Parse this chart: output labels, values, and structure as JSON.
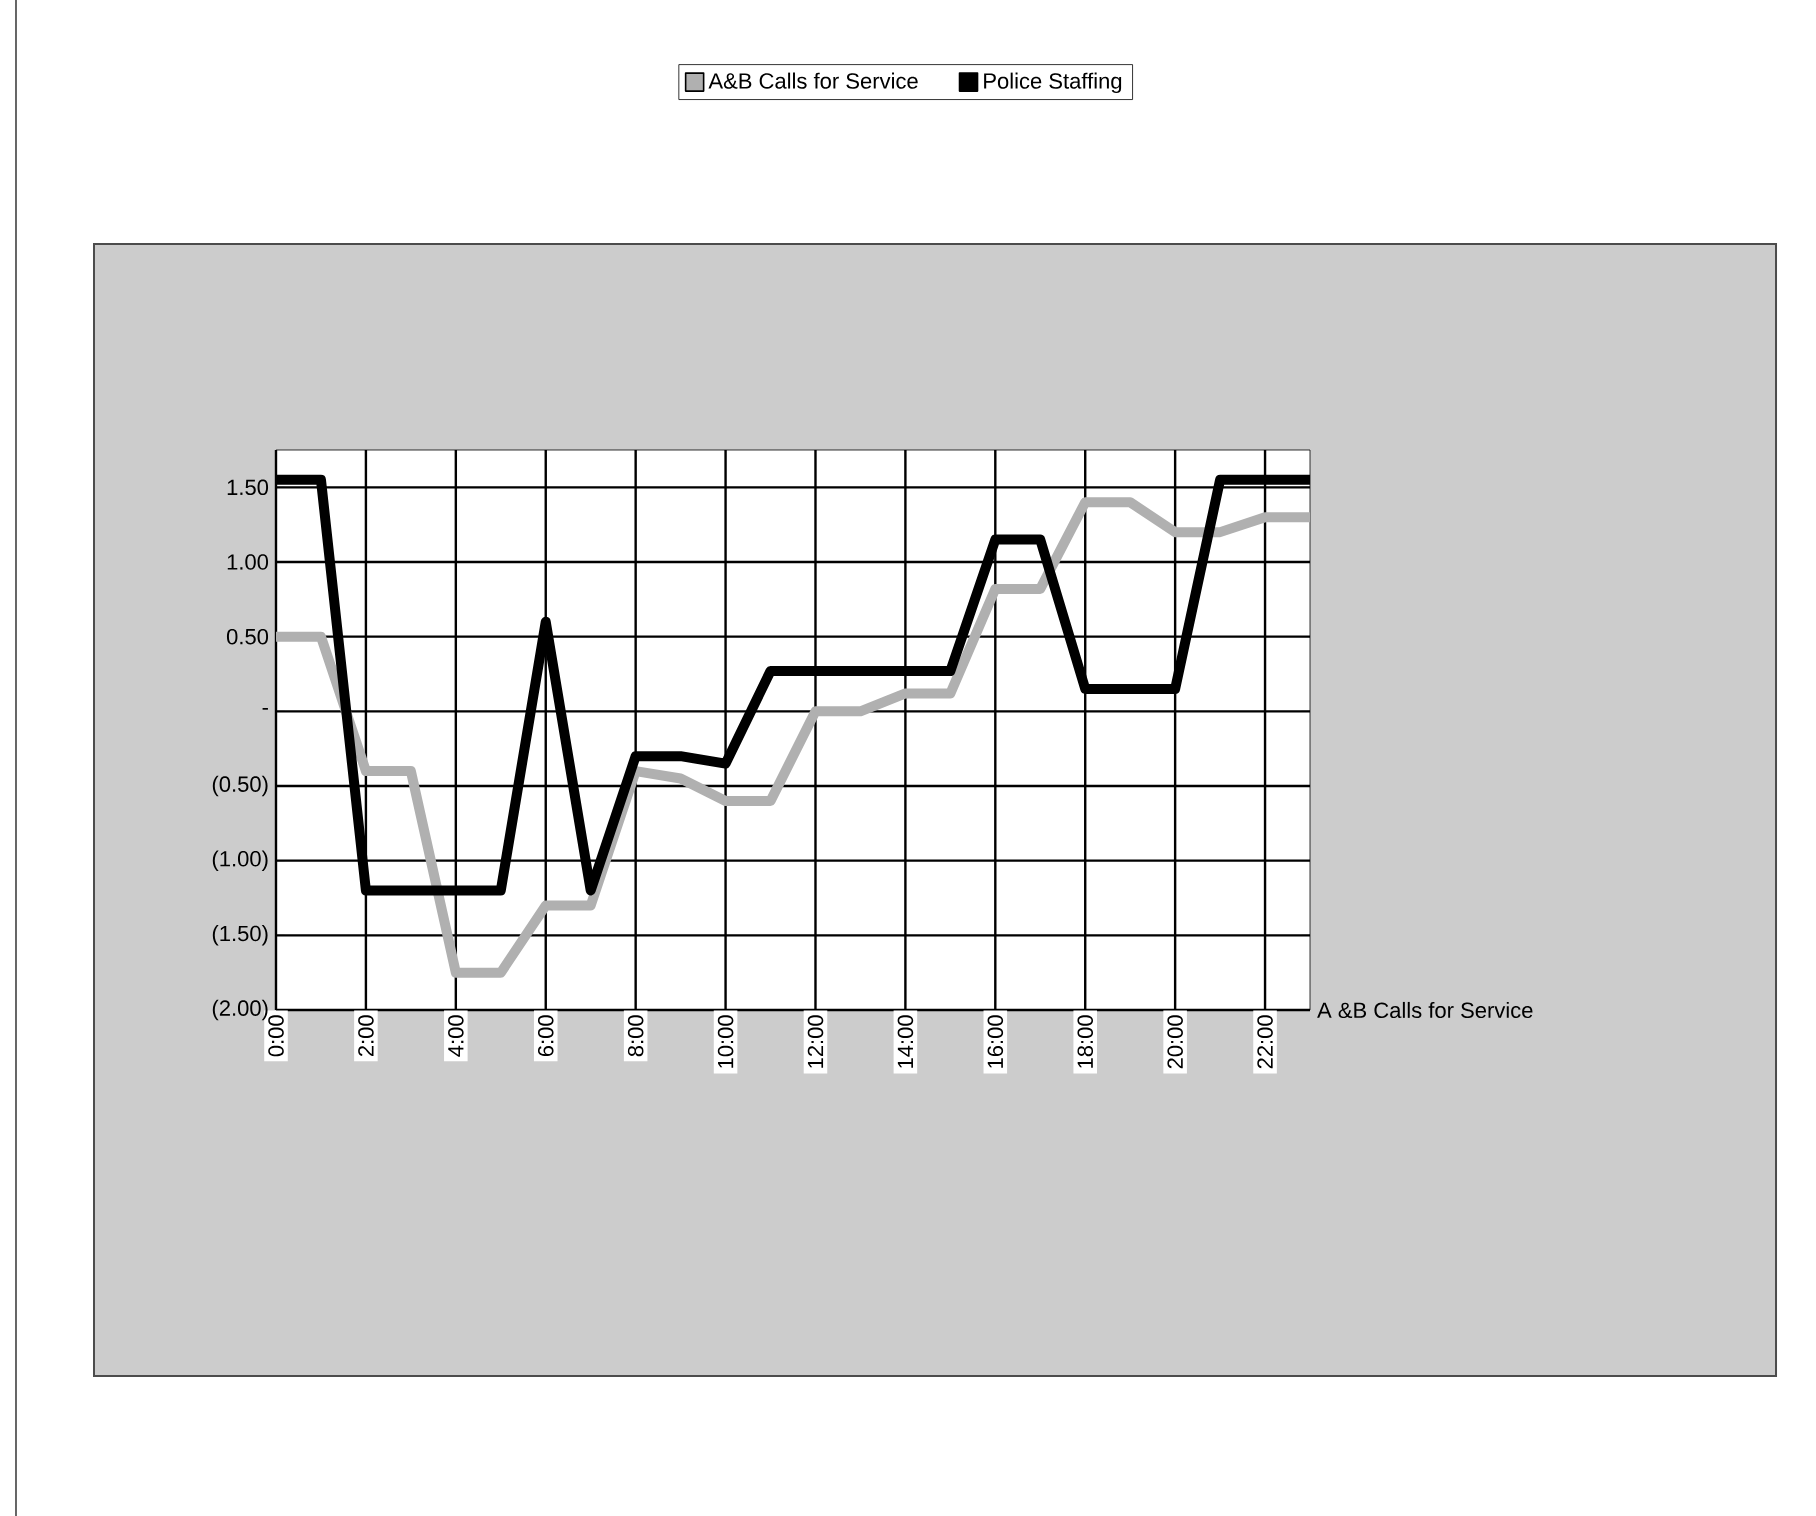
{
  "chart_data": {
    "type": "line",
    "categories": [
      "0:00",
      null,
      "2:00",
      null,
      "4:00",
      null,
      "6:00",
      null,
      "8:00",
      null,
      "10:00",
      null,
      "12:00",
      null,
      "14:00",
      null,
      "16:00",
      null,
      "18:00",
      null,
      "20:00",
      null,
      "22:00",
      null
    ],
    "series": [
      {
        "name": "A&B Calls for Service",
        "color": "#b0b0b0",
        "values": [
          0.5,
          0.5,
          -0.4,
          -0.4,
          -1.75,
          -1.75,
          -1.3,
          -1.3,
          -0.4,
          -0.45,
          -0.6,
          -0.6,
          0.0,
          0.0,
          0.12,
          0.12,
          0.82,
          0.82,
          1.4,
          1.4,
          1.2,
          1.2,
          1.3,
          1.3
        ]
      },
      {
        "name": "Police Staffing",
        "color": "#000000",
        "values": [
          1.55,
          1.55,
          -1.2,
          -1.2,
          -1.2,
          -1.2,
          0.6,
          -1.2,
          -0.3,
          -0.3,
          -0.35,
          0.27,
          0.27,
          0.27,
          0.27,
          0.27,
          1.15,
          1.15,
          0.15,
          0.15,
          0.15,
          1.55,
          1.55,
          1.55
        ]
      }
    ],
    "ylim": [
      -2,
      1.75
    ],
    "yticks": [
      {
        "value": -2,
        "label": "(2.00)"
      },
      {
        "value": -1.5,
        "label": "(1.50)"
      },
      {
        "value": -1,
        "label": "(1.00)"
      },
      {
        "value": -0.5,
        "label": "(0.50)"
      },
      {
        "value": 0,
        "label": "-"
      },
      {
        "value": 0.5,
        "label": "0.50"
      },
      {
        "value": 1,
        "label": "1.00"
      },
      {
        "value": 1.5,
        "label": "1.50"
      }
    ],
    "grid": true,
    "legend": "top",
    "marker": "none",
    "line_style": "solid",
    "annotations": [
      "A &B Calls for Service"
    ]
  }
}
